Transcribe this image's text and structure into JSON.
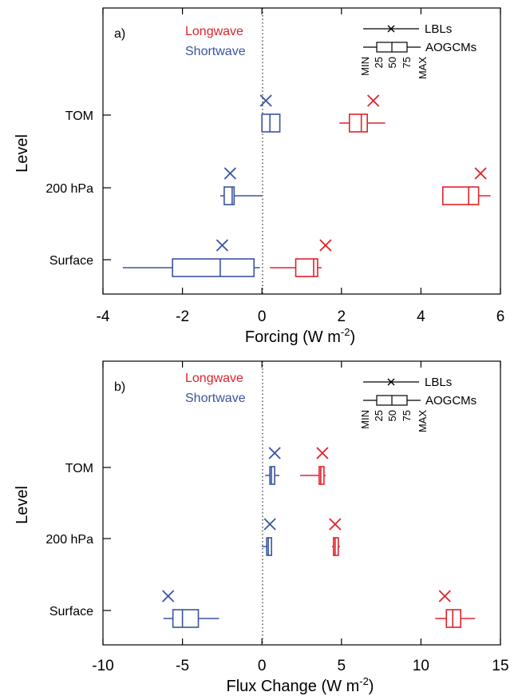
{
  "colors": {
    "longwave": "#e0222b",
    "shortwave": "#3a54a0",
    "axis": "#000000"
  },
  "legend": {
    "longwave": "Longwave",
    "shortwave": "Shortwave",
    "lbls": "LBLs",
    "aogcms": "AOGCMs",
    "stats": [
      "MIN",
      "25",
      "50",
      "75",
      "MAX"
    ]
  },
  "chart_data": [
    {
      "type": "box",
      "panel_label": "a)",
      "xlabel": "Forcing (W m",
      "xlabel_exp": "-2",
      "ylabel": "Level",
      "xlim": [
        -4,
        6
      ],
      "xticks": [
        "-4",
        "-2",
        "0",
        "2",
        "4",
        "6"
      ],
      "xtick_values": [
        -4,
        -2,
        0,
        2,
        4,
        6
      ],
      "levels": [
        "TOM",
        "200 hPa",
        "Surface"
      ],
      "series": [
        {
          "name": "Longwave",
          "lbl_values": [
            2.8,
            5.5,
            1.6
          ],
          "aogcm_boxes": [
            {
              "min": 1.95,
              "q25": 2.2,
              "median": 2.5,
              "q75": 2.65,
              "max": 3.1
            },
            {
              "min": 4.55,
              "q25": 4.55,
              "median": 5.2,
              "q75": 5.45,
              "max": 5.75
            },
            {
              "min": 0.2,
              "q25": 0.85,
              "median": 1.3,
              "q75": 1.4,
              "max": 1.5
            }
          ]
        },
        {
          "name": "Shortwave",
          "lbl_values": [
            0.1,
            -0.8,
            -1.0
          ],
          "aogcm_boxes": [
            {
              "min": 0.0,
              "q25": 0.0,
              "median": 0.2,
              "q75": 0.45,
              "max": 0.45
            },
            {
              "min": -1.05,
              "q25": -0.95,
              "median": -0.75,
              "q75": -0.7,
              "max": 0.0
            },
            {
              "min": -3.5,
              "q25": -2.25,
              "median": -1.05,
              "q75": -0.2,
              "max": -0.05
            }
          ]
        }
      ]
    },
    {
      "type": "box",
      "panel_label": "b)",
      "xlabel": "Flux Change (W m",
      "xlabel_exp": "-2",
      "ylabel": "Level",
      "xlim": [
        -10,
        15
      ],
      "xticks": [
        "-10",
        "-5",
        "0",
        "5",
        "10",
        "15"
      ],
      "xtick_values": [
        -10,
        -5,
        0,
        5,
        10,
        15
      ],
      "levels": [
        "TOM",
        "200 hPa",
        "Surface"
      ],
      "series": [
        {
          "name": "Longwave",
          "lbl_values": [
            3.8,
            4.6,
            11.5
          ],
          "aogcm_boxes": [
            {
              "min": 2.4,
              "q25": 3.6,
              "median": 3.7,
              "q75": 3.9,
              "max": 4.0
            },
            {
              "min": 4.4,
              "q25": 4.5,
              "median": 4.6,
              "q75": 4.8,
              "max": 4.9
            },
            {
              "min": 10.9,
              "q25": 11.6,
              "median": 12.0,
              "q75": 12.5,
              "max": 13.4
            }
          ]
        },
        {
          "name": "Shortwave",
          "lbl_values": [
            0.8,
            0.5,
            -5.9
          ],
          "aogcm_boxes": [
            {
              "min": 0.2,
              "q25": 0.5,
              "median": 0.6,
              "q75": 0.8,
              "max": 1.1
            },
            {
              "min": 0.0,
              "q25": 0.3,
              "median": 0.4,
              "q75": 0.6,
              "max": 0.6
            },
            {
              "min": -6.2,
              "q25": -5.6,
              "median": -5.0,
              "q75": -4.0,
              "max": -2.7
            }
          ]
        }
      ]
    }
  ]
}
